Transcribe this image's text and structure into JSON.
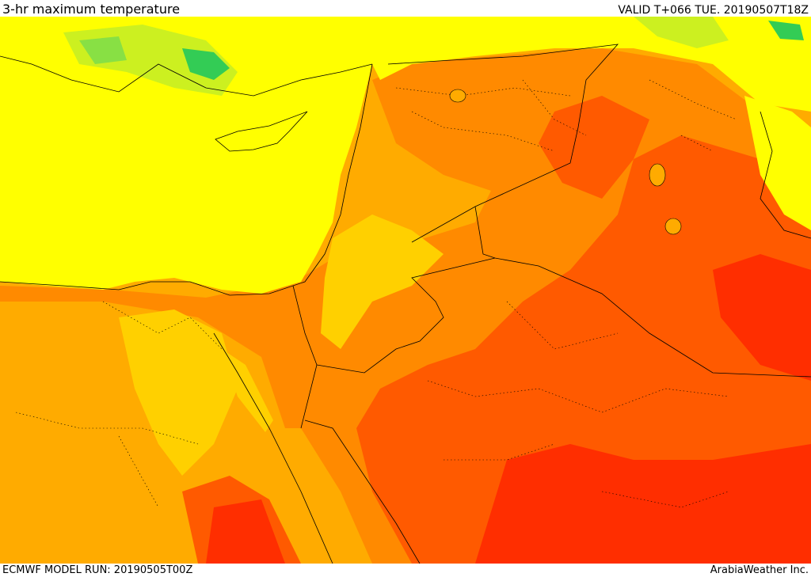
{
  "header": {
    "title": "3-hr maximum temperature",
    "valid": "VALID T+066 TUE. 20190507T18Z"
  },
  "footer": {
    "model_run": "ECMWF MODEL RUN: 20190505T00Z",
    "credit": "ArabiaWeather Inc."
  },
  "colors": {
    "cool_green": "#33cc55",
    "light_green": "#88e044",
    "lime": "#ccf020",
    "yellow": "#ffff00",
    "yellow_orange": "#ffd000",
    "orange": "#ffab00",
    "dark_orange": "#ff8a00",
    "red_orange": "#ff5a00",
    "red": "#ff2e00",
    "border_line": "#000000"
  }
}
